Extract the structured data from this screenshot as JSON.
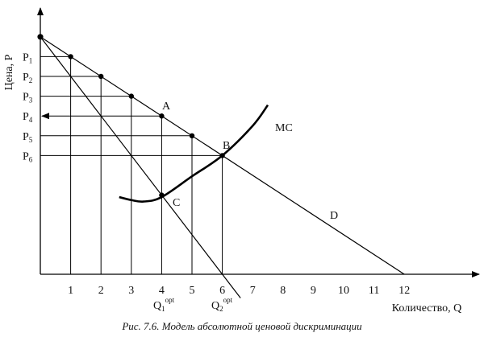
{
  "figure": {
    "y_axis_label": "Цена, Р",
    "x_axis_label": "Количество, Q",
    "caption": "Рис. 7.6. Модель абсолютной ценовой дискриминации"
  },
  "price_labels": [
    {
      "base": "P",
      "sub": "1"
    },
    {
      "base": "P",
      "sub": "2"
    },
    {
      "base": "P",
      "sub": "3"
    },
    {
      "base": "P",
      "sub": "4"
    },
    {
      "base": "P",
      "sub": "5"
    },
    {
      "base": "P",
      "sub": "6"
    }
  ],
  "quantity_ticks": [
    "1",
    "2",
    "3",
    "4",
    "5",
    "6",
    "7",
    "8",
    "9",
    "10",
    "11",
    "12"
  ],
  "q_opt_labels": [
    {
      "base": "Q",
      "sub": "1",
      "sup": "opt"
    },
    {
      "base": "Q",
      "sub": "2",
      "sup": "opt"
    }
  ],
  "curve_labels": {
    "demand": "D",
    "marginal_cost": "MC",
    "point_a": "A",
    "point_b": "B",
    "point_c": "C"
  },
  "model": {
    "demand_intercept": 8,
    "demand_slope": -0.6667,
    "mr_slope": -1.3333,
    "price_steps_q": [
      1,
      2,
      3,
      4,
      5,
      6
    ],
    "mc_points": [
      [
        2.6,
        2.6
      ],
      [
        3.0,
        2.5
      ],
      [
        3.4,
        2.45
      ],
      [
        4.0,
        2.6
      ],
      [
        5.0,
        3.3
      ],
      [
        6.0,
        4.0
      ],
      [
        7.0,
        5.0
      ],
      [
        7.5,
        5.7
      ]
    ]
  }
}
